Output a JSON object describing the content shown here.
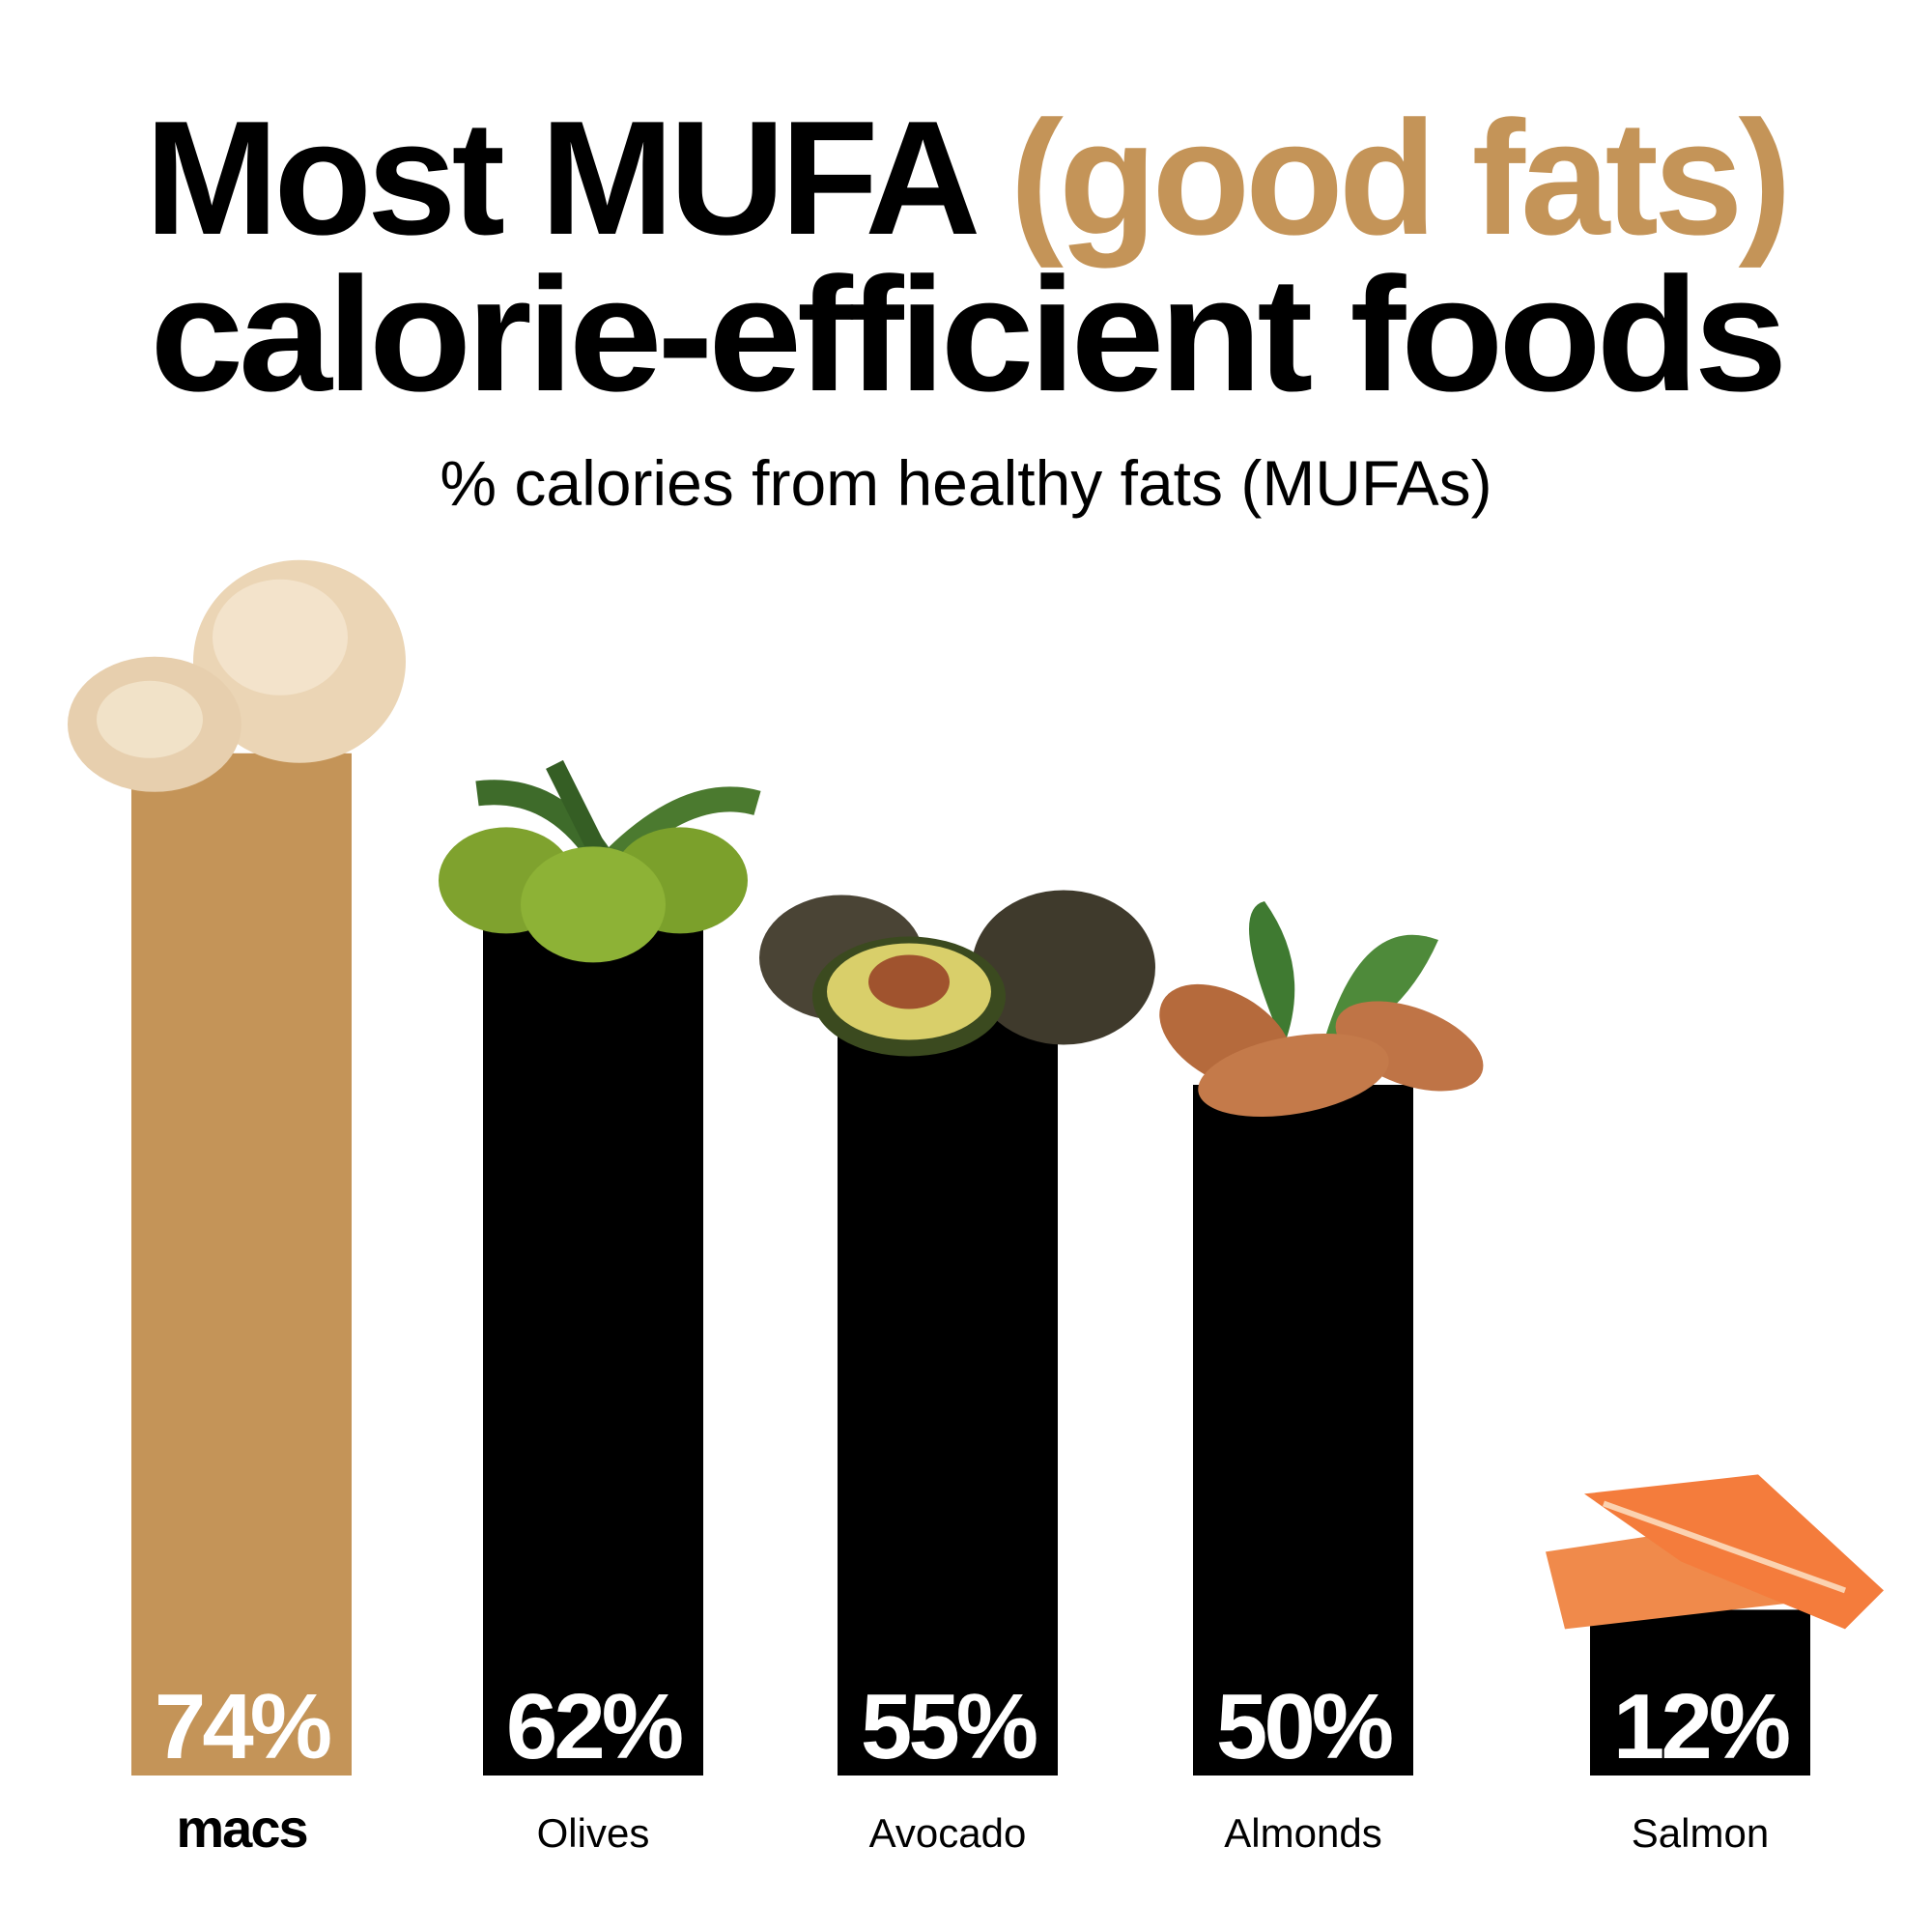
{
  "title": {
    "line1_prefix": "Most MUFA ",
    "line1_accent": "(good fats)",
    "line2": "calorie-efficient foods"
  },
  "subtitle": "% calories from healthy fats (MUFAs)",
  "colors": {
    "accent": "#C49458",
    "bar": "#000000",
    "text": "#000000",
    "value_text": "#ffffff"
  },
  "chart_data": {
    "type": "bar",
    "title": "Most MUFA (good fats) calorie-efficient foods",
    "subtitle": "% calories from healthy fats (MUFAs)",
    "categories": [
      "macs",
      "Olives",
      "Avocado",
      "Almonds",
      "Salmon"
    ],
    "values": [
      74,
      62,
      55,
      50,
      12
    ],
    "value_labels": [
      "74%",
      "62%",
      "55%",
      "50%",
      "12%"
    ],
    "highlight": "macs",
    "icons": [
      "macadamia-icon",
      "olives-icon",
      "avocado-icon",
      "almonds-icon",
      "salmon-icon"
    ],
    "xlabel": "",
    "ylabel": "",
    "ylim": [
      0,
      100
    ],
    "grid": false,
    "legend": "none"
  }
}
